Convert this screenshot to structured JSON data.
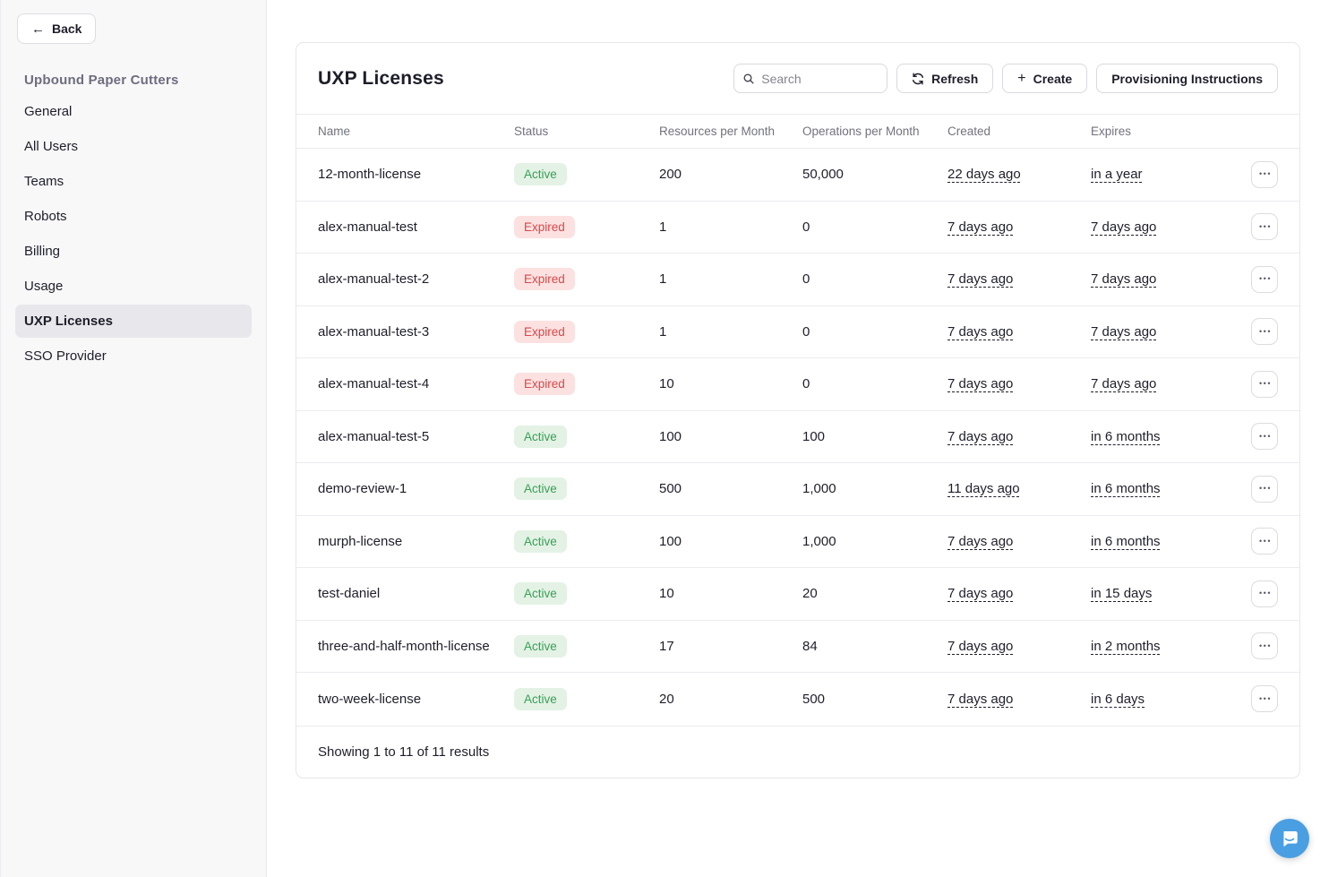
{
  "colors": {
    "accent_blue": "#4a9fe3",
    "active_text": "#38a055",
    "active_bg": "#e3f2e5",
    "expired_text": "#d64949",
    "expired_bg": "#fce1e1",
    "sidebar_bg": "#f8f8f9",
    "selected_item_bg": "#e8e8ec"
  },
  "icons": {
    "back_arrow": "←",
    "plus": "+",
    "ellipsis": "•••",
    "search": "magnifier",
    "refresh": "circular-arrows",
    "chat": "speech-bubble-smile"
  },
  "sidebar": {
    "back_label": "Back",
    "org_name": "Upbound Paper Cutters",
    "items": [
      {
        "label": "General",
        "active": false
      },
      {
        "label": "All Users",
        "active": false
      },
      {
        "label": "Teams",
        "active": false
      },
      {
        "label": "Robots",
        "active": false
      },
      {
        "label": "Billing",
        "active": false
      },
      {
        "label": "Usage",
        "active": false
      },
      {
        "label": "UXP Licenses",
        "active": true
      },
      {
        "label": "SSO Provider",
        "active": false
      }
    ]
  },
  "main": {
    "title": "UXP Licenses",
    "search": {
      "placeholder": "Search",
      "value": ""
    },
    "refresh_label": "Refresh",
    "create_label": "Create",
    "provisioning_label": "Provisioning Instructions",
    "table": {
      "columns": [
        "Name",
        "Status",
        "Resources per Month",
        "Operations per Month",
        "Created",
        "Expires"
      ],
      "rows": [
        {
          "name": "12-month-license",
          "status": "Active",
          "resources": "200",
          "operations": "50,000",
          "created": "22 days ago",
          "expires": "in a year"
        },
        {
          "name": "alex-manual-test",
          "status": "Expired",
          "resources": "1",
          "operations": "0",
          "created": "7 days ago",
          "expires": "7 days ago"
        },
        {
          "name": "alex-manual-test-2",
          "status": "Expired",
          "resources": "1",
          "operations": "0",
          "created": "7 days ago",
          "expires": "7 days ago"
        },
        {
          "name": "alex-manual-test-3",
          "status": "Expired",
          "resources": "1",
          "operations": "0",
          "created": "7 days ago",
          "expires": "7 days ago"
        },
        {
          "name": "alex-manual-test-4",
          "status": "Expired",
          "resources": "10",
          "operations": "0",
          "created": "7 days ago",
          "expires": "7 days ago"
        },
        {
          "name": "alex-manual-test-5",
          "status": "Active",
          "resources": "100",
          "operations": "100",
          "created": "7 days ago",
          "expires": "in 6 months"
        },
        {
          "name": "demo-review-1",
          "status": "Active",
          "resources": "500",
          "operations": "1,000",
          "created": "11 days ago",
          "expires": "in 6 months"
        },
        {
          "name": "murph-license",
          "status": "Active",
          "resources": "100",
          "operations": "1,000",
          "created": "7 days ago",
          "expires": "in 6 months"
        },
        {
          "name": "test-daniel",
          "status": "Active",
          "resources": "10",
          "operations": "20",
          "created": "7 days ago",
          "expires": "in 15 days"
        },
        {
          "name": "three-and-half-month-license",
          "status": "Active",
          "resources": "17",
          "operations": "84",
          "created": "7 days ago",
          "expires": "in 2 months"
        },
        {
          "name": "two-week-license",
          "status": "Active",
          "resources": "20",
          "operations": "500",
          "created": "7 days ago",
          "expires": "in 6 days"
        }
      ],
      "footer": "Showing 1 to 11 of 11 results"
    }
  }
}
